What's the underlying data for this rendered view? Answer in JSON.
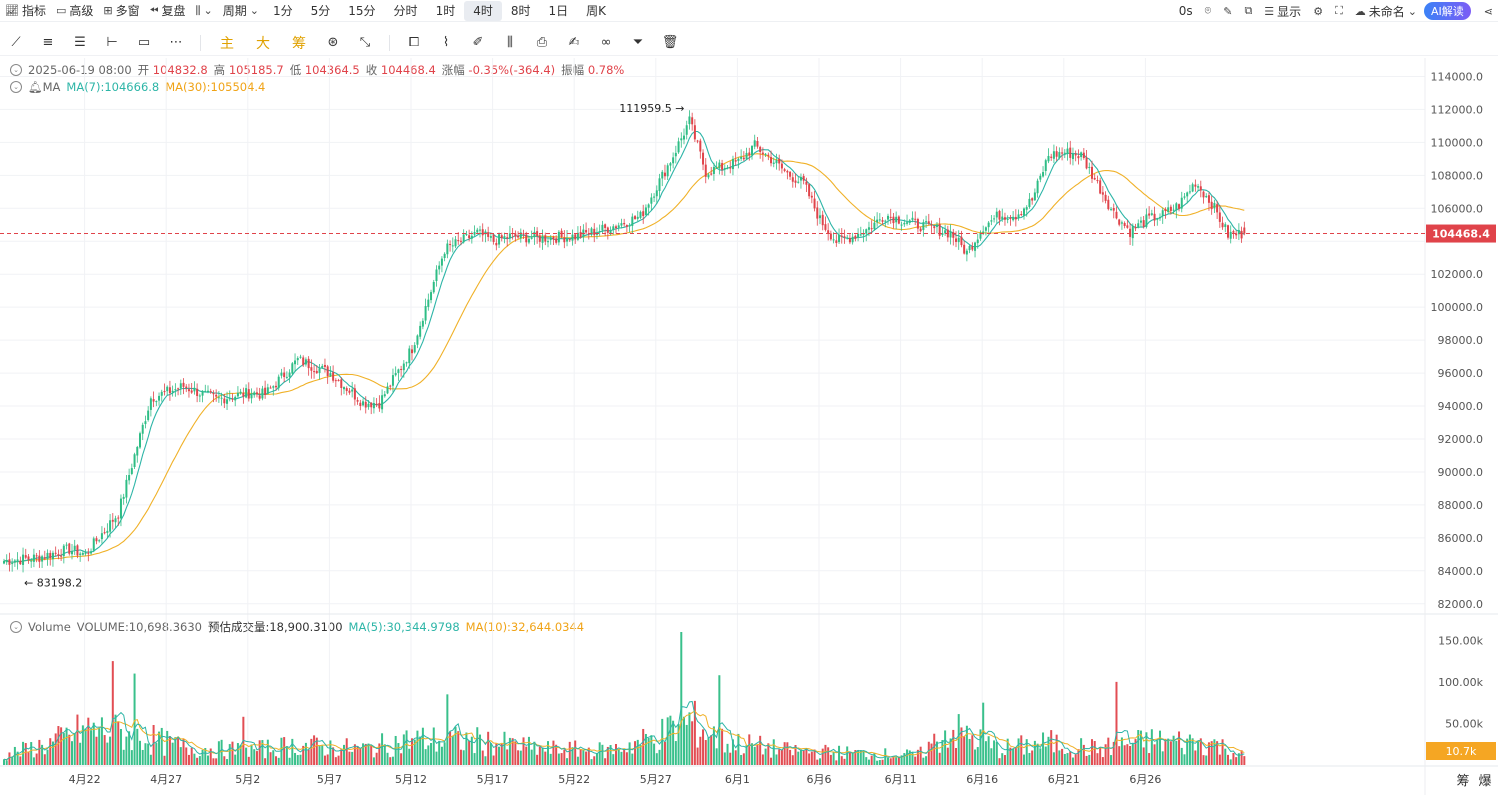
{
  "toolbar": {
    "indicators": "指标",
    "advanced": "高级",
    "multi_window": "多窗",
    "replay": "复盘",
    "period_label": "周期",
    "periods": [
      "1分",
      "5分",
      "15分",
      "分时",
      "1时",
      "4时",
      "8时",
      "1日",
      "周K"
    ],
    "active_period": "4时",
    "countdown": "0s",
    "display": "显示",
    "layout_name": "未命名",
    "ai_button": "AI解读"
  },
  "drawing_tools": {
    "chinese_buttons": [
      "主",
      "大",
      "筹"
    ]
  },
  "ohlc_info": {
    "date": "2025-06-19 08:00",
    "open_label": "开",
    "open": "104832.8",
    "high_label": "高",
    "high": "105185.7",
    "low_label": "低",
    "low": "104364.5",
    "close_label": "收",
    "close": "104468.4",
    "change_label": "涨幅",
    "change": "-0.35%(-364.4)",
    "amp_label": "振幅",
    "amp": "0.78%"
  },
  "ma_info": {
    "name": "MA",
    "ma7": "MA(7):104666.8",
    "ma30": "MA(30):105504.4"
  },
  "volume_info": {
    "name": "Volume",
    "volume": "VOLUME:10,698.3630",
    "estimated": "预估成交量:18,900.3100",
    "ma5": "MA(5):30,344.9798",
    "ma10": "MA(10):32,644.0344"
  },
  "bottom_right_buttons": [
    "筹",
    "爆"
  ],
  "chart_data": {
    "type": "candlestick",
    "price_axis": {
      "ticks": [
        114000,
        112000,
        110000,
        108000,
        106000,
        104000,
        102000,
        100000,
        98000,
        96000,
        94000,
        92000,
        90000,
        88000,
        86000,
        84000,
        82000
      ],
      "tick_labels": [
        "114000.0",
        "112000.0",
        "110000.0",
        "108000.0",
        "106000.0",
        "104000.0",
        "102000.0",
        "100000.0",
        "98000.0",
        "96000.0",
        "94000.0",
        "92000.0",
        "90000.0",
        "88000.0",
        "86000.0",
        "84000.0",
        "82000.0"
      ],
      "range": [
        81500,
        115000
      ]
    },
    "volume_axis": {
      "ticks": [
        150000,
        100000,
        50000
      ],
      "tick_labels": [
        "150.00k",
        "100.00k",
        "50.00k"
      ],
      "range": [
        0,
        160000
      ]
    },
    "x_axis": {
      "labels": [
        "4月22",
        "4月27",
        "5月2",
        "5月7",
        "5月12",
        "5月17",
        "5月22",
        "5月27",
        "6月1",
        "6月6",
        "6月11",
        "6月16",
        "6月21",
        "6月26"
      ],
      "first_day": "4月17",
      "bars_per_day": 6
    },
    "current_price": 104468.4,
    "current_price_label": "104468.4",
    "current_volume_label": "10.7k",
    "max_price_label": "111959.5",
    "min_price_label": "83198.2",
    "close_keypoints": [
      [
        0,
        84600
      ],
      [
        12,
        84800
      ],
      [
        24,
        85300
      ],
      [
        30,
        85000
      ],
      [
        42,
        87500
      ],
      [
        54,
        94500
      ],
      [
        66,
        95200
      ],
      [
        78,
        94400
      ],
      [
        90,
        94800
      ],
      [
        96,
        94700
      ],
      [
        108,
        96800
      ],
      [
        120,
        96000
      ],
      [
        132,
        94200
      ],
      [
        138,
        94200
      ],
      [
        150,
        97500
      ],
      [
        162,
        103500
      ],
      [
        174,
        104500
      ],
      [
        180,
        104000
      ],
      [
        186,
        104300
      ],
      [
        198,
        104200
      ],
      [
        210,
        104300
      ],
      [
        222,
        104800
      ],
      [
        234,
        105500
      ],
      [
        246,
        109200
      ],
      [
        252,
        111300
      ],
      [
        258,
        108200
      ],
      [
        264,
        108500
      ],
      [
        270,
        108800
      ],
      [
        276,
        109800
      ],
      [
        282,
        109000
      ],
      [
        288,
        108100
      ],
      [
        294,
        107500
      ],
      [
        300,
        105300
      ],
      [
        306,
        104000
      ],
      [
        312,
        104300
      ],
      [
        318,
        104800
      ],
      [
        324,
        105600
      ],
      [
        336,
        105000
      ],
      [
        348,
        104500
      ],
      [
        354,
        103300
      ],
      [
        360,
        104900
      ],
      [
        366,
        105600
      ],
      [
        372,
        105600
      ],
      [
        378,
        106500
      ],
      [
        384,
        109200
      ],
      [
        390,
        109400
      ],
      [
        396,
        109200
      ],
      [
        402,
        107500
      ],
      [
        408,
        105700
      ],
      [
        414,
        104600
      ],
      [
        420,
        105300
      ],
      [
        426,
        105600
      ],
      [
        432,
        106200
      ],
      [
        438,
        107600
      ],
      [
        444,
        106300
      ],
      [
        450,
        104400
      ],
      [
        456,
        104468
      ]
    ],
    "volume_keypoints": [
      [
        0,
        12000
      ],
      [
        18,
        28000
      ],
      [
        30,
        45000
      ],
      [
        48,
        38000
      ],
      [
        66,
        22000
      ],
      [
        90,
        18000
      ],
      [
        108,
        25000
      ],
      [
        132,
        20000
      ],
      [
        150,
        32000
      ],
      [
        174,
        30000
      ],
      [
        198,
        20000
      ],
      [
        222,
        18000
      ],
      [
        240,
        35000
      ],
      [
        252,
        55000
      ],
      [
        264,
        30000
      ],
      [
        288,
        18000
      ],
      [
        312,
        15000
      ],
      [
        336,
        12000
      ],
      [
        348,
        45000
      ],
      [
        366,
        20000
      ],
      [
        384,
        28000
      ],
      [
        402,
        20000
      ],
      [
        420,
        30000
      ],
      [
        444,
        28000
      ],
      [
        456,
        11000
      ]
    ],
    "volume_spikes": [
      [
        40,
        125000
      ],
      [
        48,
        110000
      ],
      [
        88,
        58000
      ],
      [
        163,
        85000
      ],
      [
        249,
        160000
      ],
      [
        263,
        108000
      ],
      [
        409,
        100000
      ],
      [
        360,
        75000
      ]
    ],
    "colors": {
      "up": "#2ebd85",
      "down": "#e0434a",
      "ma7": "#2db5a7",
      "ma30": "#f0b128",
      "vma5": "#2db5a7",
      "vma10": "#f0b128",
      "current": "#e0434a"
    }
  }
}
